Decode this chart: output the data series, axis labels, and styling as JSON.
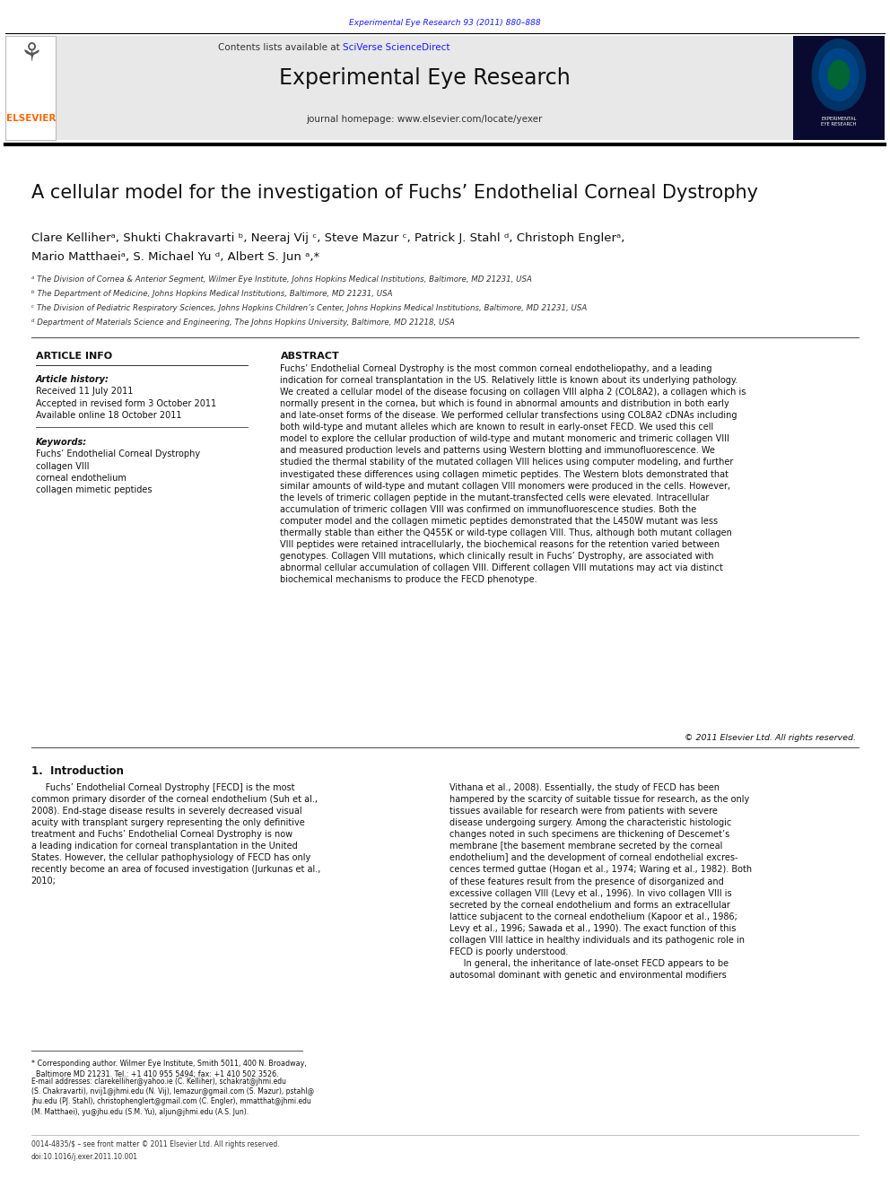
{
  "page_width": 9.92,
  "page_height": 13.23,
  "bg_color": "#ffffff",
  "header_journal_ref": "Experimental Eye Research 93 (2011) 880–888",
  "header_ref_color": "#1a1aff",
  "header_bg_color": "#e8e8e8",
  "journal_title": "Experimental Eye Research",
  "sciverse_color": "#1a1aff",
  "journal_homepage": "journal homepage: www.elsevier.com/locate/yexer",
  "elsevier_color": "#ff6600",
  "paper_title": "A cellular model for the investigation of Fuchs’ Endothelial Corneal Dystrophy",
  "authors_line1": "Clare Kelliherᵃ, Shukti Chakravarti ᵇ, Neeraj Vij ᶜ, Steve Mazur ᶜ, Patrick J. Stahl ᵈ, Christoph Englerᵃ,",
  "authors_line2": "Mario Matthaeiᵃ, S. Michael Yu ᵈ, Albert S. Jun ᵃ,*",
  "affil_a": "ᵃ The Division of Cornea & Anterior Segment, Wilmer Eye Institute, Johns Hopkins Medical Institutions, Baltimore, MD 21231, USA",
  "affil_b": "ᵇ The Department of Medicine, Johns Hopkins Medical Institutions, Baltimore, MD 21231, USA",
  "affil_c": "ᶜ The Division of Pediatric Respiratory Sciences, Johns Hopkins Children’s Center, Johns Hopkins Medical Institutions, Baltimore, MD 21231, USA",
  "affil_d": "ᵈ Department of Materials Science and Engineering, The Johns Hopkins University, Baltimore, MD 21218, USA",
  "article_info_title": "ARTICLE INFO",
  "article_history_label": "Article history:",
  "received": "Received 11 July 2011",
  "accepted": "Accepted in revised form 3 October 2011",
  "available": "Available online 18 October 2011",
  "keywords_label": "Keywords:",
  "keyword1": "Fuchs’ Endothelial Corneal Dystrophy",
  "keyword2": "collagen VIII",
  "keyword3": "corneal endothelium",
  "keyword4": "collagen mimetic peptides",
  "abstract_title": "ABSTRACT",
  "abstract_text": "Fuchs’ Endothelial Corneal Dystrophy is the most common corneal endotheliopathy, and a leading\nindication for corneal transplantation in the US. Relatively little is known about its underlying pathology.\nWe created a cellular model of the disease focusing on collagen VIII alpha 2 (COL8A2), a collagen which is\nnormally present in the cornea, but which is found in abnormal amounts and distribution in both early\nand late-onset forms of the disease. We performed cellular transfections using COL8A2 cDNAs including\nboth wild-type and mutant alleles which are known to result in early-onset FECD. We used this cell\nmodel to explore the cellular production of wild-type and mutant monomeric and trimeric collagen VIII\nand measured production levels and patterns using Western blotting and immunofluorescence. We\nstudied the thermal stability of the mutated collagen VIII helices using computer modeling, and further\ninvestigated these differences using collagen mimetic peptides. The Western blots demonstrated that\nsimilar amounts of wild-type and mutant collagen VIII monomers were produced in the cells. However,\nthe levels of trimeric collagen peptide in the mutant-transfected cells were elevated. Intracellular\naccumulation of trimeric collagen VIII was confirmed on immunofluorescence studies. Both the\ncomputer model and the collagen mimetic peptides demonstrated that the L450W mutant was less\nthermally stable than either the Q455K or wild-type collagen VIII. Thus, although both mutant collagen\nVIII peptides were retained intracellularly, the biochemical reasons for the retention varied between\ngenotypes. Collagen VIII mutations, which clinically result in Fuchs’ Dystrophy, are associated with\nabnormal cellular accumulation of collagen VIII. Different collagen VIII mutations may act via distinct\nbiochemical mechanisms to produce the FECD phenotype.",
  "copyright": "© 2011 Elsevier Ltd. All rights reserved.",
  "intro_title": "1.  Introduction",
  "intro_col1": "     Fuchs’ Endothelial Corneal Dystrophy [FECD] is the most\ncommon primary disorder of the corneal endothelium (Suh et al.,\n2008). End-stage disease results in severely decreased visual\nacuity with transplant surgery representing the only definitive\ntreatment and Fuchs’ Endothelial Corneal Dystrophy is now\na leading indication for corneal transplantation in the United\nStates. However, the cellular pathophysiology of FECD has only\nrecently become an area of focused investigation (Jurkunas et al.,\n2010;",
  "intro_col2": "Vithana et al., 2008). Essentially, the study of FECD has been\nhampered by the scarcity of suitable tissue for research, as the only\ntissues available for research were from patients with severe\ndisease undergoing surgery. Among the characteristic histologic\nchanges noted in such specimens are thickening of Descemet’s\nmembrane [the basement membrane secreted by the corneal\nendothelium] and the development of corneal endothelial excres-\ncences termed guttae (Hogan et al., 1974; Waring et al., 1982). Both\nof these features result from the presence of disorganized and\nexcessive collagen VIII (Levy et al., 1996). In vivo collagen VIII is\nsecreted by the corneal endothelium and forms an extracellular\nlattice subjacent to the corneal endothelium (Kapoor et al., 1986;\nLevy et al., 1996; Sawada et al., 1990). The exact function of this\ncollagen VIII lattice in healthy individuals and its pathogenic role in\nFECD is poorly understood.\n     In general, the inheritance of late-onset FECD appears to be\nautosomal dominant with genetic and environmental modifiers",
  "footnote_star": "* Corresponding author. Wilmer Eye Institute, Smith 5011, 400 N. Broadway,\n  Baltimore MD 21231. Tel.: +1 410 955 5494; fax: +1 410 502 3526.",
  "footnote_email": "E-mail addresses: clarekelliher@yahoo.ie (C. Kelliher), schakrat@jhmi.edu\n(S. Chakravarti), nvij1@jhmi.edu (N. Vij), lemazur@gmail.com (S. Mazur), pstahl@\njhu.edu (PJ. Stahl), christophenglert@gmail.com (C. Engler), mmatthat@jhmi.edu\n(M. Matthaei), yu@jhu.edu (S.M. Yu), aljun@jhmi.edu (A.S. Jun).",
  "bottom_ref1": "0014-4835/$ – see front matter © 2011 Elsevier Ltd. All rights reserved.",
  "bottom_ref2": "doi:10.1016/j.exer.2011.10.001"
}
